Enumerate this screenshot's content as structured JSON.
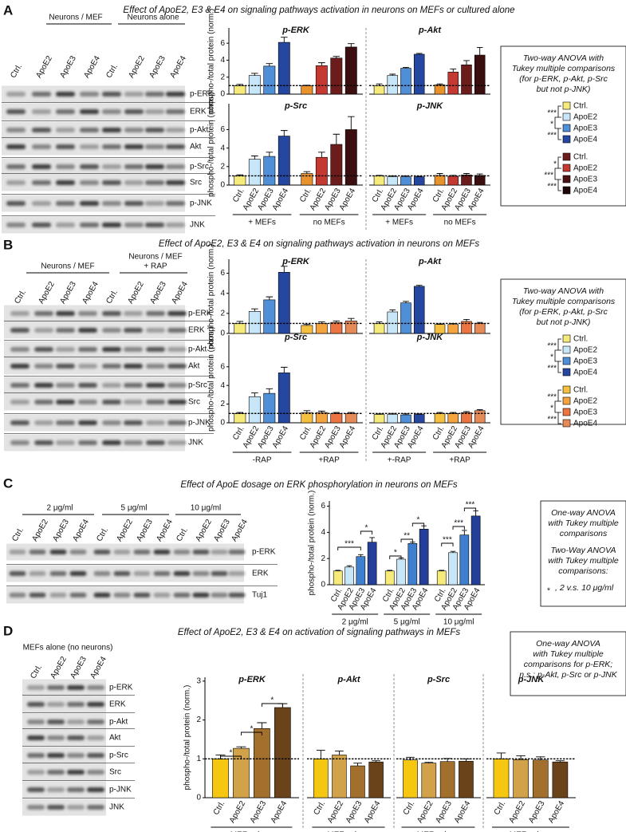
{
  "panels": [
    {
      "label": "A",
      "title": "Effect of ApoE2, E3 & E4 on signaling pathways activation in neurons on MEFs or cultured alone",
      "blot": {
        "headers": [
          [
            "Neurons / MEF"
          ],
          [
            "Neurons alone"
          ]
        ],
        "lanes": [
          "Ctrl.",
          "ApoE2",
          "ApoE3",
          "ApoE4",
          "Ctrl.",
          "ApoE2",
          "ApoE3",
          "ApoE4"
        ],
        "rows": [
          "p-ERK",
          "ERK",
          "p-Akt",
          "Akt",
          "p-Src",
          "Src",
          "p-JNK",
          "JNK"
        ]
      },
      "stats": {
        "paragraphs": [
          [
            "Two-way ANOVA with",
            "Tukey multiple comparisons",
            "(for p-ERK, p-Akt, p-Src",
            "but not p-JNK)"
          ]
        ],
        "legend": [
          {
            "entries": [
              {
                "name": "Ctrl.",
                "color": "#f6ea7a"
              },
              {
                "name": "ApoE2",
                "color": "#c7e6f7"
              },
              {
                "name": "ApoE3",
                "color": "#4f8fd8"
              },
              {
                "name": "ApoE4",
                "color": "#25479f"
              }
            ],
            "comparisons": [
              "***",
              "*",
              "***"
            ]
          },
          {
            "entries": [
              {
                "name": "Ctrl.",
                "color": "#6d1c1c"
              },
              {
                "name": "ApoE2",
                "color": "#c43a32"
              },
              {
                "name": "ApoE3",
                "color": "#4a1214"
              },
              {
                "name": "ApoE4",
                "color": "#1e0708"
              }
            ],
            "comparisons": [
              "*",
              "***",
              "***"
            ]
          }
        ]
      }
    },
    {
      "label": "B",
      "title": "Effect of ApoE2, E3 & E4 on signaling pathways activation in neurons on MEFs",
      "blot": {
        "headers": [
          [
            "Neurons / MEF"
          ],
          [
            "Neurons / MEF",
            "+ RAP"
          ]
        ],
        "lanes": [
          "Ctrl.",
          "ApoE2",
          "ApoE3",
          "ApoE4",
          "Ctrl.",
          "ApoE2",
          "ApoE3",
          "ApoE4"
        ],
        "rows": [
          "p-ERK",
          "ERK",
          "p-Akt",
          "Akt",
          "p-Src",
          "Src",
          "p-JNK",
          "JNK"
        ]
      },
      "stats": {
        "paragraphs": [
          [
            "Two-way ANOVA with",
            "Tukey multiple comparisons",
            "(for p-ERK, p-Akt, p-Src",
            "but not p-JNK)"
          ]
        ],
        "legend": [
          {
            "entries": [
              {
                "name": "Ctrl.",
                "color": "#f6ea7a"
              },
              {
                "name": "ApoE2",
                "color": "#c7e6f7"
              },
              {
                "name": "ApoE3",
                "color": "#4f8fd8"
              },
              {
                "name": "ApoE4",
                "color": "#25479f"
              }
            ],
            "comparisons": [
              "***",
              "*",
              "***"
            ]
          },
          {
            "entries": [
              {
                "name": "Ctrl.",
                "color": "#f5c040"
              },
              {
                "name": "ApoE2",
                "color": "#f3a43e"
              },
              {
                "name": "ApoE3",
                "color": "#ec7440"
              },
              {
                "name": "ApoE4",
                "color": "#e68a58"
              }
            ],
            "comparisons": [
              "***",
              "*",
              "***"
            ]
          }
        ]
      }
    },
    {
      "label": "C",
      "title": "Effect of ApoE dosage on ERK phosphorylation in neurons on MEFs",
      "blot": {
        "headers": [
          [
            "2 μg/ml"
          ],
          [
            "5 μg/ml"
          ],
          [
            "10 μg/ml"
          ]
        ],
        "lanes": [
          "Ctrl.",
          "ApoE2",
          "ApoE3",
          "ApoE4",
          "Ctrl.",
          "ApoE2",
          "ApoE3",
          "ApoE4",
          "Ctrl.",
          "ApoE2",
          "ApoE3",
          "ApoE4"
        ],
        "rows": [
          "p-ERK",
          "ERK",
          "Tuj1"
        ]
      },
      "stats": {
        "paragraphs": [
          [
            "One-way ANOVA",
            "with Tukey multiple",
            "comparisons"
          ],
          [
            "Two-Way ANOVA",
            "with Tukey multiple",
            "comparisons:"
          ]
        ],
        "note": {
          "symbol": "*",
          "text": ", 2 v.s. 10 μg/ml"
        }
      }
    },
    {
      "label": "D",
      "title": "Effect of ApoE2, E3 & E4 on activation of signaling pathways in MEFs",
      "blot": {
        "headers": [
          [
            "MEFs alone (no neurons)"
          ]
        ],
        "lanes": [
          "Ctrl.",
          "ApoE2",
          "ApoE3",
          "ApoE4"
        ],
        "rows": [
          "p-ERK",
          "ERK",
          "p-Akt",
          "Akt",
          "p-Src",
          "Src",
          "p-JNK",
          "JNK"
        ]
      },
      "stats": {
        "paragraphs": [
          [
            "One-way ANOVA",
            "with Tukey multiple",
            "comparisons for p-ERK;",
            "n.s.: p-Akt, p-Src or p-JNK"
          ]
        ]
      }
    }
  ],
  "chart_data": [
    {
      "type": "bar",
      "title": "p-ERK",
      "ylabel": "phospho-/total protein (norm.)",
      "ylim": [
        0,
        7.8
      ],
      "yticks": [
        0,
        2,
        4,
        6
      ],
      "reference_line": 1,
      "values": [
        1,
        2.2,
        3.3,
        6.1,
        1,
        3.35,
        4.25,
        5.55
      ],
      "errors": [
        0.15,
        0.25,
        0.3,
        0.6,
        0.05,
        0.35,
        0.2,
        0.4
      ],
      "colors": [
        "#f6ea7a",
        "#c7e6f7",
        "#4f8fd8",
        "#25479f",
        "#e8922e",
        "#c43a32",
        "#6d1c1c",
        "#3b0e10"
      ]
    },
    {
      "type": "bar",
      "title": "p-Akt",
      "ylim": [
        0,
        7.8
      ],
      "reference_line": 1,
      "values": [
        1,
        2.2,
        3.05,
        4.7,
        1.1,
        2.6,
        3.45,
        4.6
      ],
      "errors": [
        0.2,
        0.15,
        0.1,
        0.1,
        0.1,
        0.35,
        0.5,
        0.9
      ],
      "colors": [
        "#f6ea7a",
        "#c7e6f7",
        "#4f8fd8",
        "#25479f",
        "#e8922e",
        "#c43a32",
        "#6d1c1c",
        "#3b0e10"
      ]
    },
    {
      "type": "bar",
      "title": "p-Src",
      "ylabel": "phospho-/total protein (norm.)",
      "ylim": [
        0,
        8.8
      ],
      "yticks": [
        0,
        2,
        4,
        6
      ],
      "reference_line": 1,
      "values": [
        1,
        2.8,
        3.1,
        5.3,
        1.25,
        3.0,
        4.4,
        6.0
      ],
      "errors": [
        0.1,
        0.35,
        0.45,
        0.6,
        0.2,
        0.55,
        1.1,
        1.4
      ],
      "colors": [
        "#f6ea7a",
        "#c7e6f7",
        "#4f8fd8",
        "#25479f",
        "#e8922e",
        "#c43a32",
        "#6d1c1c",
        "#3b0e10"
      ],
      "categories": [
        "Ctrl.",
        "ApoE2",
        "ApoE3",
        "ApoE4",
        "Ctrl.",
        "ApoE2",
        "ApoE3",
        "ApoE4"
      ],
      "groups": [
        "+ MEFs",
        "no MEFs"
      ]
    },
    {
      "type": "bar",
      "title": "p-JNK",
      "ylim": [
        0,
        8.8
      ],
      "reference_line": 1,
      "values": [
        1,
        0.9,
        0.9,
        0.9,
        1.05,
        0.95,
        1.1,
        1.05
      ],
      "errors": [
        0.05,
        0.1,
        0.1,
        0.05,
        0.2,
        0.1,
        0.15,
        0.15
      ],
      "colors": [
        "#f6ea7a",
        "#c7e6f7",
        "#4f8fd8",
        "#25479f",
        "#e8922e",
        "#c43a32",
        "#6d1c1c",
        "#3b0e10"
      ],
      "categories": [
        "Ctrl.",
        "ApoE2",
        "ApoE3",
        "ApoE4",
        "Ctrl.",
        "ApoE2",
        "ApoE3",
        "ApoE4"
      ],
      "groups": [
        "+ MEFs",
        "no MEFs"
      ]
    },
    {
      "type": "bar",
      "title": "p-ERK",
      "ylabel": "phospho-/total protein (norm.)",
      "ylim": [
        0,
        7.4
      ],
      "yticks": [
        0,
        2,
        4,
        6
      ],
      "reference_line": 1,
      "values": [
        1,
        2.2,
        3.35,
        6.1,
        0.8,
        1.0,
        1.1,
        1.25
      ],
      "errors": [
        0.2,
        0.25,
        0.3,
        0.6,
        0.1,
        0.15,
        0.15,
        0.25
      ],
      "colors": [
        "#f6ea7a",
        "#c7e6f7",
        "#4f8fd8",
        "#25479f",
        "#f5c040",
        "#f3a43e",
        "#ec7440",
        "#e68a58"
      ]
    },
    {
      "type": "bar",
      "title": "p-Akt",
      "ylim": [
        0,
        7.4
      ],
      "reference_line": 1,
      "values": [
        1,
        2.15,
        3.05,
        4.7,
        0.9,
        0.9,
        1.2,
        1.0
      ],
      "errors": [
        0.15,
        0.2,
        0.15,
        0.1,
        0.05,
        0.1,
        0.2,
        0.1
      ],
      "colors": [
        "#f6ea7a",
        "#c7e6f7",
        "#4f8fd8",
        "#25479f",
        "#f5c040",
        "#f3a43e",
        "#ec7440",
        "#e68a58"
      ]
    },
    {
      "type": "bar",
      "title": "p-Src",
      "ylabel": "phospho-/total protein (norm.)",
      "ylim": [
        0,
        9.4
      ],
      "yticks": [
        0,
        2,
        4,
        6
      ],
      "reference_line": 1,
      "values": [
        1,
        2.8,
        3.15,
        5.35,
        1.1,
        1.1,
        1.0,
        1.0
      ],
      "errors": [
        0.1,
        0.4,
        0.5,
        0.6,
        0.2,
        0.15,
        0.1,
        0.1
      ],
      "colors": [
        "#f6ea7a",
        "#c7e6f7",
        "#4f8fd8",
        "#25479f",
        "#f5c040",
        "#f3a43e",
        "#ec7440",
        "#e68a58"
      ],
      "categories": [
        "Ctrl.",
        "ApoE2",
        "ApoE3",
        "ApoE4",
        "Ctrl.",
        "ApoE2",
        "ApoE3",
        "ApoE4"
      ],
      "groups": [
        "-RAP",
        "+RAP"
      ]
    },
    {
      "type": "bar",
      "title": "p-JNK",
      "ylim": [
        0,
        9.4
      ],
      "reference_line": 1,
      "values": [
        0.9,
        0.9,
        0.85,
        0.9,
        1.0,
        1.0,
        1.1,
        1.3
      ],
      "errors": [
        0.05,
        0.1,
        0.1,
        0.05,
        0.1,
        0.1,
        0.1,
        0.1
      ],
      "colors": [
        "#f6ea7a",
        "#c7e6f7",
        "#4f8fd8",
        "#25479f",
        "#f5c040",
        "#f3a43e",
        "#ec7440",
        "#e68a58"
      ],
      "categories": [
        "Ctrl.",
        "ApoE2",
        "ApoE3",
        "ApoE4",
        "Ctrl.",
        "ApoE2",
        "ApoE3",
        "ApoE4"
      ],
      "groups": [
        "+-RAP",
        "+RAP"
      ]
    },
    {
      "type": "bar",
      "ylabel": "phospho-/total protein (norm.)",
      "ylim": [
        0,
        6.4
      ],
      "yticks": [
        0,
        2,
        4,
        6
      ],
      "values": [
        1.05,
        1.35,
        2.15,
        3.25,
        1.05,
        1.95,
        3.15,
        4.25,
        1.05,
        2.45,
        3.8,
        5.25
      ],
      "errors": [
        0.05,
        0.1,
        0.15,
        0.35,
        0.05,
        0.1,
        0.1,
        0.25,
        0.05,
        0.1,
        0.35,
        0.4
      ],
      "colors": [
        "#f6ea7a",
        "#c7e6f7",
        "#3e7fcf",
        "#233f99",
        "#f6ea7a",
        "#c7e6f7",
        "#3e7fcf",
        "#233f99",
        "#f6ea7a",
        "#c7e6f7",
        "#3e7fcf",
        "#233f99"
      ],
      "categories": [
        "Ctrl.",
        "ApoE2",
        "ApoE3",
        "ApoE4",
        "Ctrl.",
        "ApoE2",
        "ApoE3",
        "ApoE4",
        "Ctrl.",
        "ApoE2",
        "ApoE3",
        "ApoE4"
      ],
      "groups": [
        "2 μg/ml",
        "5 μg/ml",
        "10 μg/ml"
      ],
      "annotations": [
        "***",
        "*",
        "*",
        "**",
        "*",
        "***",
        "***",
        "***"
      ]
    },
    {
      "type": "bar",
      "title": "p-ERK",
      "ylabel": "phospho-/total protein (norm.)",
      "ylim": [
        0,
        3.1
      ],
      "yticks": [
        0,
        1,
        2,
        3
      ],
      "reference_line": 1,
      "values": [
        1.0,
        1.27,
        1.78,
        2.32
      ],
      "errors": [
        0.1,
        0.04,
        0.15,
        0.1
      ],
      "colors": [
        "#f6c710",
        "#d2a24a",
        "#a36f2c",
        "#6b431a"
      ],
      "categories": [
        "Ctrl.",
        "ApoE2",
        "ApoE3",
        "ApoE4"
      ],
      "groups": [
        "MEFs alone"
      ],
      "annotations": [
        "*",
        "*",
        "*"
      ]
    },
    {
      "type": "bar",
      "title": "p-Akt",
      "ylim": [
        0,
        3.1
      ],
      "reference_line": 1,
      "values": [
        1.0,
        1.1,
        0.82,
        0.92
      ],
      "errors": [
        0.22,
        0.1,
        0.07,
        0.03
      ],
      "colors": [
        "#f6c710",
        "#d2a24a",
        "#a36f2c",
        "#6b431a"
      ],
      "categories": [
        "Ctrl.",
        "ApoE2",
        "ApoE3",
        "ApoE4"
      ],
      "groups": [
        "MEFs alone"
      ]
    },
    {
      "type": "bar",
      "title": "p-Src",
      "ylim": [
        0,
        3.1
      ],
      "reference_line": 1,
      "values": [
        0.97,
        0.89,
        0.93,
        0.94
      ],
      "errors": [
        0.07,
        0.02,
        0.08,
        0.06
      ],
      "colors": [
        "#f6c710",
        "#d2a24a",
        "#a36f2c",
        "#6b431a"
      ],
      "categories": [
        "Ctrl.",
        "ApoE2",
        "ApoE3",
        "ApoE4"
      ],
      "groups": [
        "MEFs alone"
      ]
    },
    {
      "type": "bar",
      "title": "p-JNK",
      "ylim": [
        0,
        3.1
      ],
      "reference_line": 1,
      "values": [
        1.0,
        0.98,
        0.97,
        0.92
      ],
      "errors": [
        0.15,
        0.1,
        0.08,
        0.03
      ],
      "colors": [
        "#f6c710",
        "#d2a24a",
        "#a36f2c",
        "#6b431a"
      ],
      "categories": [
        "Ctrl.",
        "ApoE2",
        "ApoE3",
        "ApoE4"
      ],
      "groups": [
        "MEFs alone"
      ]
    }
  ]
}
